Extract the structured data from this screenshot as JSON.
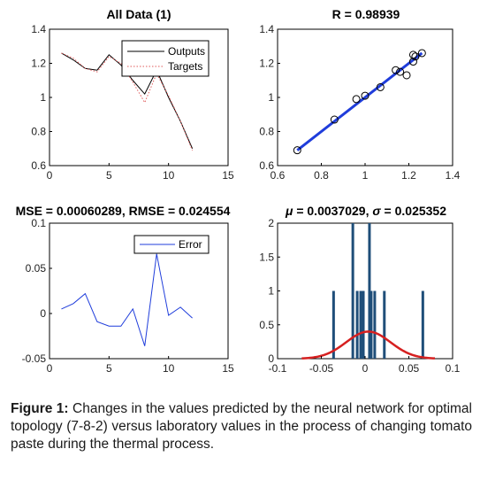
{
  "chart_data": [
    {
      "type": "line",
      "title": "All Data (1)",
      "x": [
        1,
        2,
        3,
        4,
        5,
        6,
        7,
        8,
        9,
        10,
        11,
        12
      ],
      "series": [
        {
          "name": "Outputs",
          "color": "#000000",
          "dash": "solid",
          "values": [
            1.26,
            1.22,
            1.17,
            1.16,
            1.25,
            1.19,
            1.1,
            1.02,
            1.16,
            1.0,
            0.86,
            0.7
          ]
        },
        {
          "name": "Targets",
          "color": "#e05a5a",
          "dash": "dotted",
          "values": [
            1.26,
            1.23,
            1.17,
            1.15,
            1.24,
            1.2,
            1.09,
            0.97,
            1.14,
            1.01,
            0.86,
            0.69
          ]
        }
      ],
      "xlim": [
        0,
        15
      ],
      "ylim": [
        0.6,
        1.4
      ],
      "xticks": [
        "0",
        "5",
        "10",
        "15"
      ],
      "yticks": [
        "0.6",
        "0.8",
        "1",
        "1.2",
        "1.4"
      ],
      "legend": "top-right"
    },
    {
      "type": "scatter",
      "title": "R = 0.98939",
      "points": [
        [
          0.69,
          0.69
        ],
        [
          0.86,
          0.87
        ],
        [
          0.96,
          0.99
        ],
        [
          1.0,
          1.01
        ],
        [
          1.07,
          1.06
        ],
        [
          1.14,
          1.16
        ],
        [
          1.16,
          1.15
        ],
        [
          1.19,
          1.13
        ],
        [
          1.22,
          1.25
        ],
        [
          1.22,
          1.21
        ],
        [
          1.23,
          1.24
        ],
        [
          1.26,
          1.26
        ]
      ],
      "fit_line": [
        [
          0.69,
          0.69
        ],
        [
          1.26,
          1.26
        ]
      ],
      "fit_color": "#1f3ddb",
      "xlim": [
        0.6,
        1.4
      ],
      "ylim": [
        0.6,
        1.4
      ],
      "xticks": [
        "0.6",
        "0.8",
        "1",
        "1.2",
        "1.4"
      ],
      "yticks": [
        "0.6",
        "0.8",
        "1",
        "1.2",
        "1.4"
      ]
    },
    {
      "type": "line",
      "title": "MSE = 0.00060289, RMSE = 0.024554",
      "x": [
        1,
        2,
        3,
        4,
        5,
        6,
        7,
        8,
        9,
        10,
        11,
        12
      ],
      "series": [
        {
          "name": "Error",
          "color": "#1f3ddb",
          "dash": "solid",
          "values": [
            0.005,
            0.011,
            0.022,
            -0.009,
            -0.014,
            -0.014,
            0.005,
            -0.036,
            0.066,
            -0.002,
            0.007,
            -0.005
          ]
        }
      ],
      "xlim": [
        0,
        15
      ],
      "ylim": [
        -0.05,
        0.1
      ],
      "xticks": [
        "0",
        "5",
        "10",
        "15"
      ],
      "yticks": [
        "-0.05",
        "0",
        "0.05",
        "0.1"
      ],
      "legend": "top-right"
    },
    {
      "type": "bar",
      "title_mu_symbol": "μ",
      "title_mu_value": " = 0.0037029, ",
      "title_sigma_symbol": "σ",
      "title_sigma_value": " = 0.025352",
      "bars": [
        {
          "x": -0.036,
          "height": 1
        },
        {
          "x": -0.014,
          "height": 2
        },
        {
          "x": -0.009,
          "height": 1
        },
        {
          "x": -0.005,
          "height": 1
        },
        {
          "x": -0.002,
          "height": 1
        },
        {
          "x": 0.005,
          "height": 2
        },
        {
          "x": 0.007,
          "height": 1
        },
        {
          "x": 0.011,
          "height": 1
        },
        {
          "x": 0.022,
          "height": 1
        },
        {
          "x": 0.066,
          "height": 1
        }
      ],
      "bar_color": "#1f4e79",
      "normal_curve": {
        "mu": 0.0037029,
        "sigma": 0.025352,
        "color": "#d62020",
        "peak": 0.4
      },
      "xlim": [
        -0.1,
        0.1
      ],
      "ylim": [
        0,
        2
      ],
      "xticks": [
        "-0.1",
        "-0.05",
        "0",
        "0.05",
        "0.1"
      ],
      "yticks": [
        "0",
        "0.5",
        "1",
        "1.5",
        "2"
      ]
    }
  ],
  "caption": {
    "label": "Figure 1:",
    "text": " Changes in the values predicted by the neural network for optimal topology (7-8-2) versus laboratory values in the process of changing tomato paste during the thermal process."
  }
}
